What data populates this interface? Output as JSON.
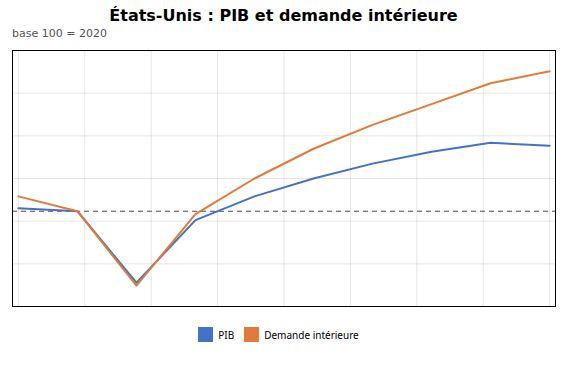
{
  "chart_data": {
    "type": "line",
    "title": "États-Unis : PIB et demande intérieure",
    "subtitle": "base 100 = 2020",
    "x": [
      0,
      1,
      2,
      3,
      4,
      5,
      6,
      7,
      8,
      9
    ],
    "series": [
      {
        "name": "PIB",
        "color": "#4472c4",
        "values": [
          100.5,
          100.0,
          88.0,
          98.5,
          102.5,
          105.5,
          108.0,
          110.0,
          111.5,
          111.0
        ]
      },
      {
        "name": "Demande intérieure",
        "color": "#e07b39",
        "values": [
          102.5,
          100.0,
          87.5,
          99.5,
          105.5,
          110.5,
          114.5,
          118.0,
          121.5,
          123.5
        ]
      }
    ],
    "xlim": [
      -0.1,
      9.1
    ],
    "xticks": [
      0,
      1.125,
      2.25,
      3.375,
      4.5,
      5.625,
      6.75,
      7.875,
      9
    ],
    "ylim": [
      84,
      127
    ],
    "yticks": [
      84,
      91.16666666666667,
      98.33333333333333,
      105.5,
      112.66666666666667,
      119.83333333333333,
      127
    ],
    "baseline": 100,
    "grid": true,
    "legend": "bottom",
    "tick_labels": false
  }
}
